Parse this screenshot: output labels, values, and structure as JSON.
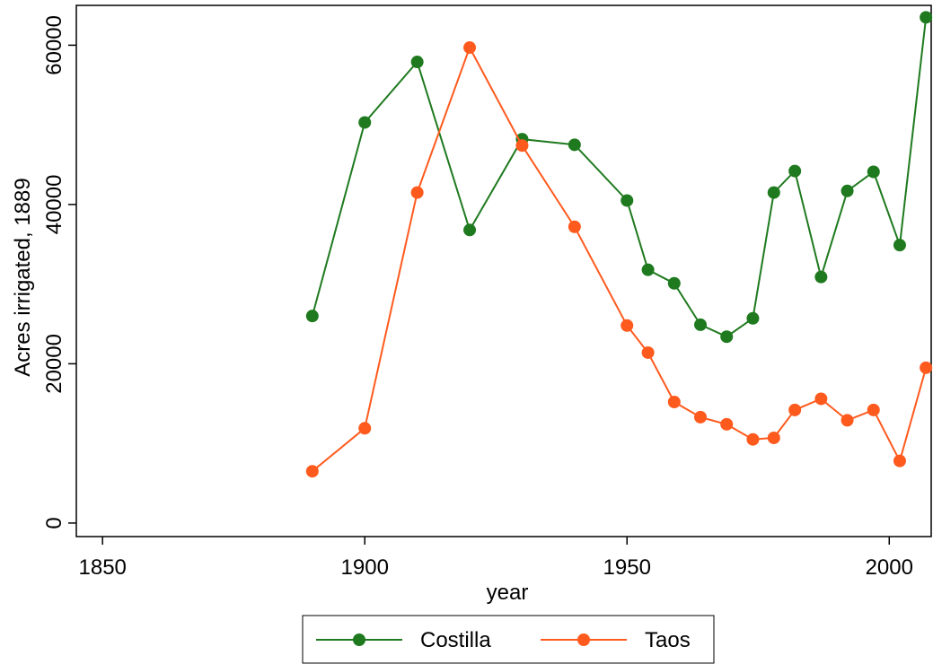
{
  "chart_data": {
    "type": "line",
    "xlabel": "year",
    "ylabel": "Acres irrigated, 1889",
    "xlim": [
      1845,
      2008
    ],
    "ylim": [
      -1700,
      65000
    ],
    "xticks": [
      1850,
      1900,
      1950,
      2000
    ],
    "yticks": [
      0,
      20000,
      40000,
      60000
    ],
    "grid": false,
    "legend_position": "bottom",
    "x": [
      1890,
      1900,
      1910,
      1920,
      1930,
      1940,
      1950,
      1954,
      1959,
      1964,
      1969,
      1974,
      1978,
      1982,
      1987,
      1992,
      1997,
      2002,
      2007
    ],
    "series": [
      {
        "name": "Costilla",
        "color": "#1f7a1f",
        "values": [
          26000,
          50300,
          57900,
          36800,
          48200,
          47500,
          40500,
          31800,
          30100,
          24900,
          23400,
          25700,
          41500,
          44200,
          30900,
          41700,
          44100,
          34900,
          63500
        ]
      },
      {
        "name": "Taos",
        "color": "#ff5a1e",
        "values": [
          6500,
          11900,
          41500,
          59700,
          47400,
          37200,
          24800,
          21400,
          15200,
          13300,
          12400,
          10500,
          10700,
          14200,
          15600,
          12900,
          14200,
          7800,
          19500
        ]
      }
    ]
  }
}
